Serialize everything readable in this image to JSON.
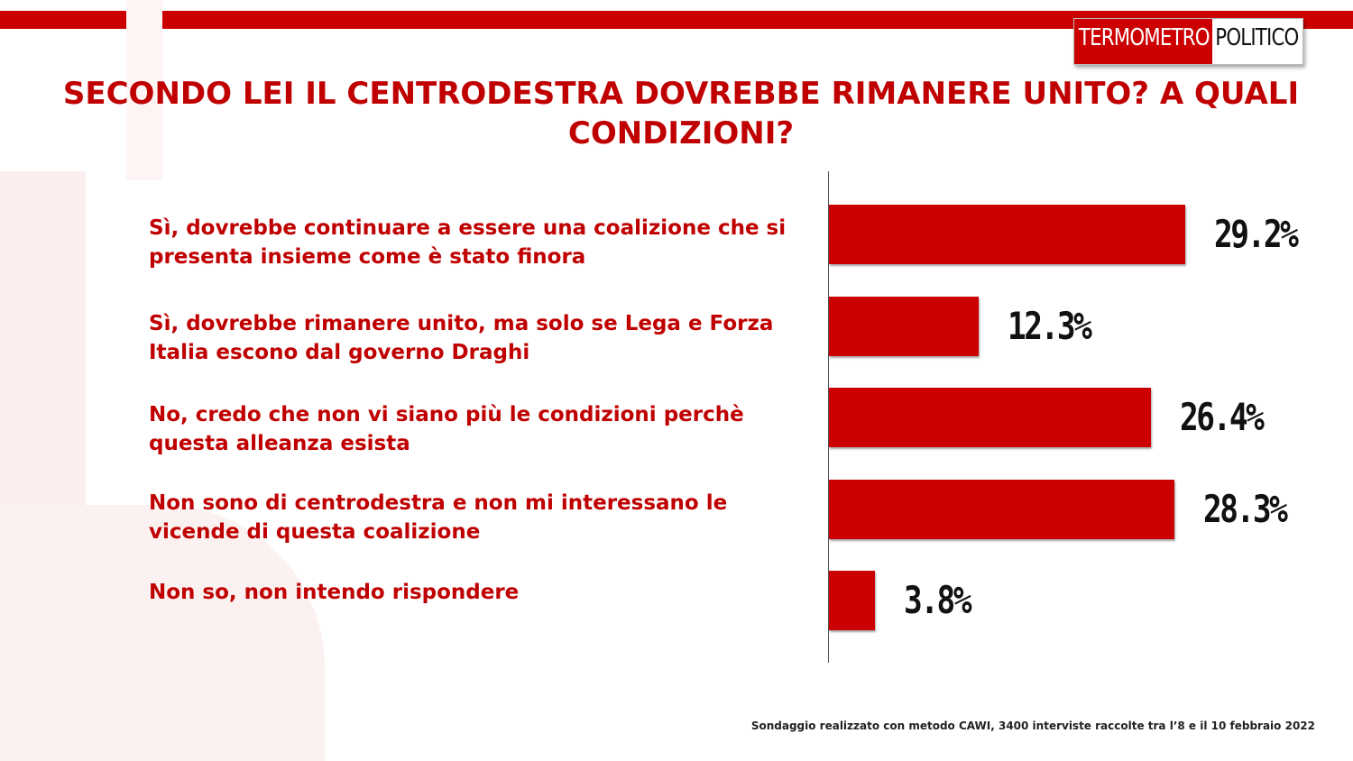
{
  "brand": {
    "logo_part1": "TERMOMETRO",
    "logo_part2": "POLITICO"
  },
  "colors": {
    "accent": "#cc0000",
    "title": "#c00000"
  },
  "chart_data": {
    "type": "bar",
    "orientation": "horizontal",
    "title": "SECONDO LEI IL CENTRODESTRA DOVREBBE RIMANERE UNITO? A QUALI CONDIZIONI?",
    "categories": [
      "Sì, dovrebbe continuare a essere una coalizione che si presenta insieme come è stato finora",
      "Sì, dovrebbe rimanere unito, ma solo se Lega e Forza Italia escono dal governo Draghi",
      "No, credo che non vi siano più le condizioni perchè questa alleanza esista",
      "Non sono di centrodestra e non mi interessano le vicende di questa coalizione",
      "Non so, non intendo rispondere"
    ],
    "values": [
      29.2,
      12.3,
      26.4,
      28.3,
      3.8
    ],
    "value_labels": [
      "29.2%",
      "12.3%",
      "26.4%",
      "28.3%",
      "3.8%"
    ],
    "unit": "%",
    "grid": false,
    "legend": "none"
  },
  "footnote": "Sondaggio realizzato con metodo CAWI, 3400 interviste raccolte tra l’8 e il 10 febbraio 2022"
}
